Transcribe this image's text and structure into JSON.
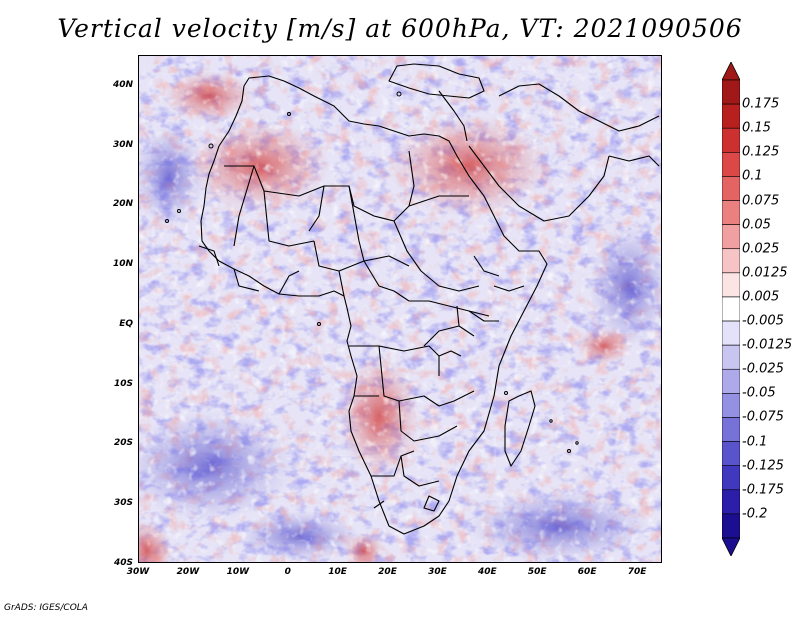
{
  "title": "Vertical velocity [m/s] at 600hPa, VT: 2021090506",
  "credit": "GrADS: IGES/COLA",
  "map": {
    "lon_range": [
      -30,
      75
    ],
    "lat_range": [
      -40,
      45
    ],
    "lat_ticks": [
      {
        "value": 40,
        "label": "40N"
      },
      {
        "value": 30,
        "label": "30N"
      },
      {
        "value": 20,
        "label": "20N"
      },
      {
        "value": 10,
        "label": "10N"
      },
      {
        "value": 0,
        "label": "EQ"
      },
      {
        "value": -10,
        "label": "10S"
      },
      {
        "value": -20,
        "label": "20S"
      },
      {
        "value": -30,
        "label": "30S"
      },
      {
        "value": -40,
        "label": "40S"
      }
    ],
    "lon_ticks": [
      {
        "value": -30,
        "label": "30W"
      },
      {
        "value": -20,
        "label": "20W"
      },
      {
        "value": -10,
        "label": "10W"
      },
      {
        "value": 0,
        "label": "0"
      },
      {
        "value": 10,
        "label": "10E"
      },
      {
        "value": 20,
        "label": "20E"
      },
      {
        "value": 30,
        "label": "30E"
      },
      {
        "value": 40,
        "label": "40E"
      },
      {
        "value": 50,
        "label": "50E"
      },
      {
        "value": 60,
        "label": "60E"
      },
      {
        "value": 70,
        "label": "70E"
      }
    ]
  },
  "colorbar": {
    "labels": [
      "0.175",
      "0.15",
      "0.125",
      "0.1",
      "0.075",
      "0.05",
      "0.025",
      "0.0125",
      "0.005",
      "-0.005",
      "-0.0125",
      "-0.025",
      "-0.05",
      "-0.075",
      "-0.1",
      "-0.125",
      "-0.175",
      "-0.2"
    ],
    "colors": [
      "#a01818",
      "#b82020",
      "#cc3030",
      "#dc4848",
      "#e46464",
      "#ea8080",
      "#f0a0a0",
      "#f6c4c4",
      "#fbe4e4",
      "#ffffff",
      "#e4e2f8",
      "#c8c6f0",
      "#aeaaea",
      "#9490e2",
      "#7672d8",
      "#5a54cc",
      "#4038be",
      "#2c1ea8",
      "#1c0e90"
    ]
  }
}
